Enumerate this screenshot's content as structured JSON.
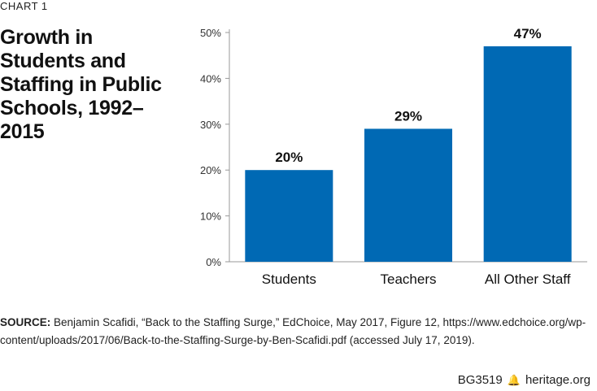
{
  "chart_label": "CHART 1",
  "title": "Growth in Students and Staffing in Public Schools, 1992–2015",
  "chart_data": {
    "type": "bar",
    "title": "Growth in Students and Staffing in Public Schools, 1992–2015",
    "categories": [
      "Students",
      "Teachers",
      "All Other Staff"
    ],
    "values": [
      20,
      29,
      47
    ],
    "data_labels": [
      "20%",
      "29%",
      "47%"
    ],
    "ylim": [
      0,
      50
    ],
    "yticks": [
      "0%",
      "10%",
      "20%",
      "30%",
      "40%",
      "50%"
    ],
    "xlabel": "",
    "ylabel": "",
    "grid": false,
    "bar_color": "#0069b4"
  },
  "source": {
    "label": "SOURCE:",
    "text": "Benjamin Scafidi, “Back to the Staffing Surge,” EdChoice, May 2017, Figure 12, https://www.edchoice.org/wp-content/uploads/2017/06/Back-to-the-Staffing-Surge-by-Ben-Scafidi.pdf (accessed July 17, 2019)."
  },
  "footer": {
    "code": "BG3519",
    "icon": "bell-icon",
    "site": "heritage.org"
  }
}
